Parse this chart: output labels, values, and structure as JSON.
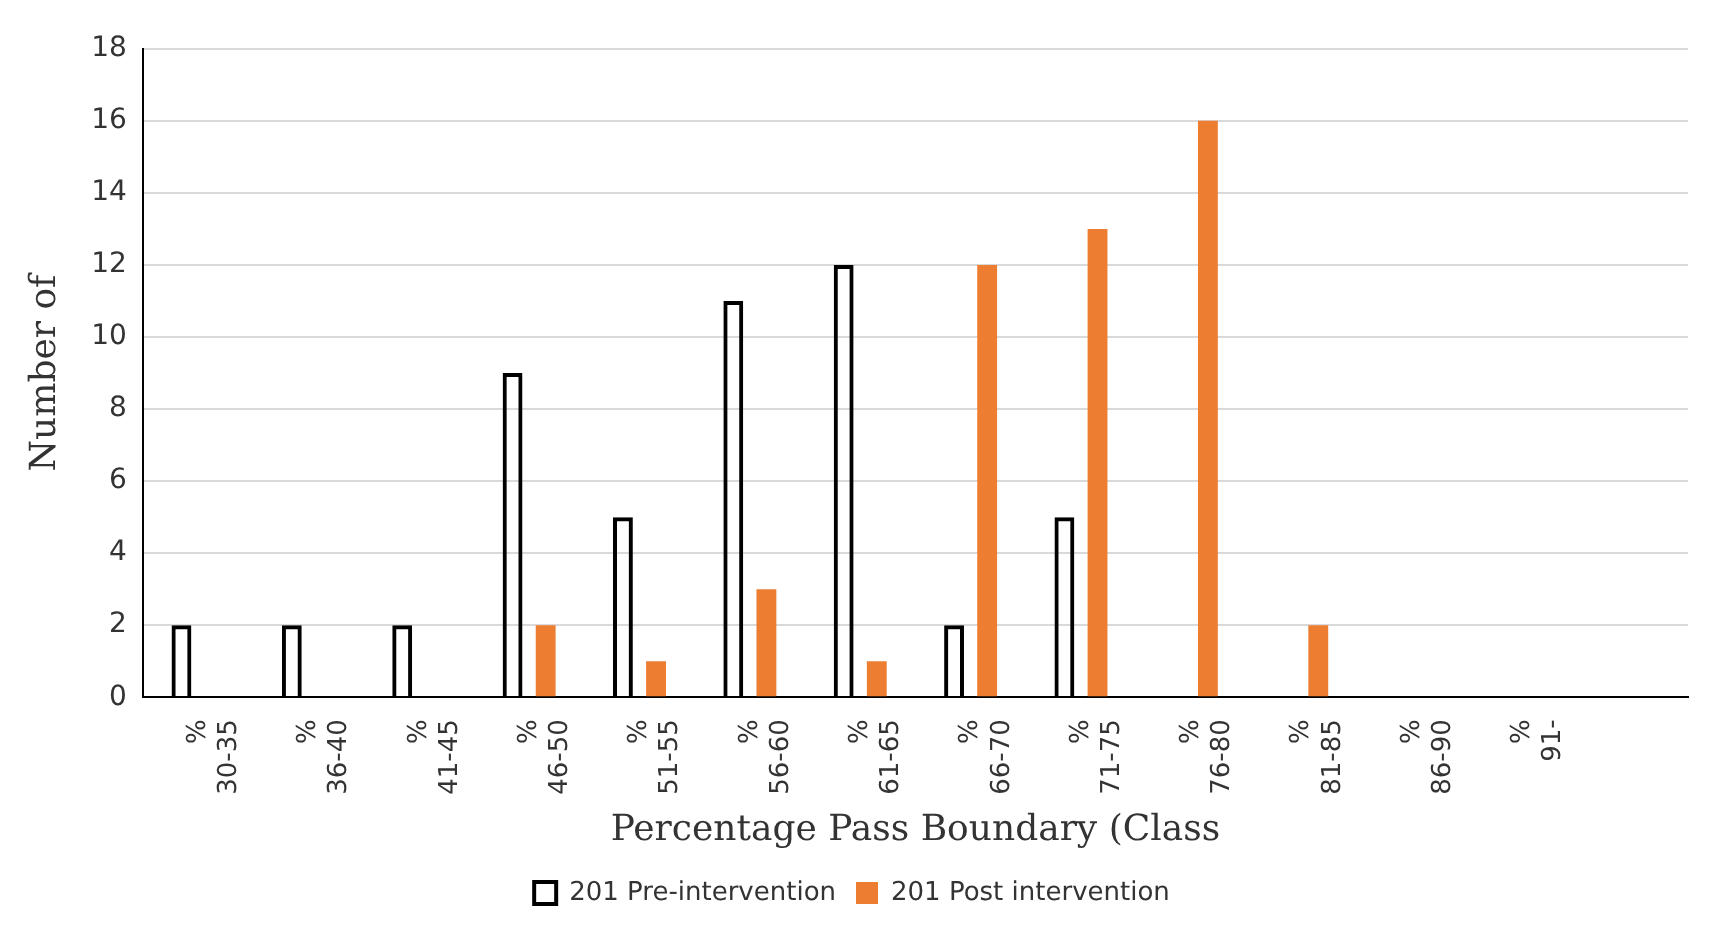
{
  "chart_data": {
    "type": "bar",
    "xlabel": "Percentage Pass Boundary (Class",
    "ylabel": "Number of",
    "categories": [
      "%\n30-35",
      "%\n36-40",
      "%\n41-45",
      "%\n46-50",
      "%\n51-55",
      "%\n56-60",
      "%\n61-65",
      "%\n66-70",
      "%\n71-75",
      "%\n76-80",
      "%\n81-85",
      "%\n86-90",
      "%\n91-",
      null
    ],
    "series": [
      {
        "name": "201 Pre-intervention",
        "color": "#000000",
        "values": [
          2,
          2,
          2,
          9,
          5,
          11,
          12,
          2,
          5,
          0,
          0,
          0,
          0,
          0
        ]
      },
      {
        "name": "201 Post intervention",
        "color": "#ed7d31",
        "values": [
          0,
          0,
          0,
          2,
          1,
          3,
          1,
          12,
          13,
          16,
          2,
          0,
          0,
          0
        ]
      }
    ],
    "ylim": [
      0,
      18
    ],
    "yticks": [
      0,
      2,
      4,
      6,
      8,
      10,
      12,
      14,
      16,
      18
    ],
    "grid": "y",
    "legend": "bottom"
  }
}
